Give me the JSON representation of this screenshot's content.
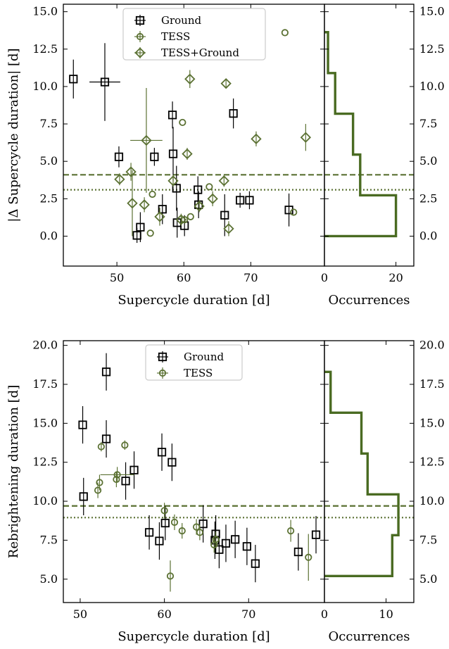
{
  "colors": {
    "ground": "#000000",
    "tess": "#5b7133",
    "tess_ground": "#5b7133",
    "hist": "#4a6b22"
  },
  "chart_data": [
    {
      "type": "scatter",
      "panel": "top",
      "xlabel": "Supercycle duration [d]",
      "ylabel": "|Δ Supercycle duration| [d]",
      "xlim": [
        42,
        81
      ],
      "ylim": [
        -2,
        15.5
      ],
      "xticks": [
        50,
        60,
        70
      ],
      "yticks": [
        0.0,
        2.5,
        5.0,
        7.5,
        10.0,
        12.5,
        15.0
      ],
      "ytick_labels": [
        "0.0",
        "2.5",
        "5.0",
        "7.5",
        "10.0",
        "12.5",
        "15.0"
      ],
      "hlines": [
        {
          "y": 4.1,
          "style": "dashed"
        },
        {
          "y": 3.1,
          "style": "dotted"
        }
      ],
      "legend": [
        "Ground",
        "TESS",
        "TESS+Ground"
      ],
      "series": [
        {
          "name": "Ground",
          "marker": "square",
          "points": [
            {
              "x": 43.5,
              "y": 10.5,
              "xerr": 0,
              "yerr": 1.3
            },
            {
              "x": 48.2,
              "y": 10.3,
              "xerr": 2.3,
              "yerr": 2.6
            },
            {
              "x": 50.3,
              "y": 5.3,
              "xerr": 0,
              "yerr": 0.7
            },
            {
              "x": 53.0,
              "y": 0.05,
              "xerr": 0,
              "yerr": 0.5
            },
            {
              "x": 53.5,
              "y": 0.6,
              "xerr": 0,
              "yerr": 1.0
            },
            {
              "x": 55.6,
              "y": 5.3,
              "xerr": 0,
              "yerr": 0.6
            },
            {
              "x": 56.8,
              "y": 1.8,
              "xerr": 0,
              "yerr": 1.0
            },
            {
              "x": 58.3,
              "y": 8.1,
              "xerr": 0,
              "yerr": 0.9
            },
            {
              "x": 58.4,
              "y": 5.5,
              "xerr": 0,
              "yerr": 1.8
            },
            {
              "x": 58.9,
              "y": 3.2,
              "xerr": 0,
              "yerr": 1.5
            },
            {
              "x": 59.0,
              "y": 0.9,
              "xerr": 0,
              "yerr": 1.0
            },
            {
              "x": 60.1,
              "y": 0.7,
              "xerr": 0,
              "yerr": 0.7
            },
            {
              "x": 62.1,
              "y": 3.1,
              "xerr": 0,
              "yerr": 0.9
            },
            {
              "x": 62.2,
              "y": 2.1,
              "xerr": 0,
              "yerr": 0.9
            },
            {
              "x": 66.1,
              "y": 1.4,
              "xerr": 0,
              "yerr": 1.4
            },
            {
              "x": 67.4,
              "y": 8.2,
              "xerr": 0,
              "yerr": 1.0
            },
            {
              "x": 68.4,
              "y": 2.4,
              "xerr": 0,
              "yerr": 0.5
            },
            {
              "x": 69.8,
              "y": 2.4,
              "xerr": 0,
              "yerr": 0.6
            },
            {
              "x": 75.7,
              "y": 1.75,
              "xerr": 0,
              "yerr": 1.1
            }
          ]
        },
        {
          "name": "TESS",
          "marker": "circle",
          "points": [
            {
              "x": 55.0,
              "y": 0.2,
              "xerr": 0,
              "yerr": 0
            },
            {
              "x": 55.3,
              "y": 2.8,
              "xerr": 0,
              "yerr": 0
            },
            {
              "x": 59.8,
              "y": 7.6,
              "xerr": 0,
              "yerr": 0
            },
            {
              "x": 60.1,
              "y": 1.1,
              "xerr": 0,
              "yerr": 0
            },
            {
              "x": 61.0,
              "y": 1.3,
              "xerr": 0,
              "yerr": 0
            },
            {
              "x": 63.8,
              "y": 3.3,
              "xerr": 0,
              "yerr": 0
            },
            {
              "x": 75.1,
              "y": 13.6,
              "xerr": 0,
              "yerr": 0
            },
            {
              "x": 76.4,
              "y": 1.6,
              "xerr": 0,
              "yerr": 0
            }
          ]
        },
        {
          "name": "TESS+Ground",
          "marker": "diamond",
          "points": [
            {
              "x": 50.4,
              "y": 3.8,
              "xerr": 0,
              "yerr": 0.4
            },
            {
              "x": 52.1,
              "y": 4.3,
              "xerr": 0,
              "yerr": 0.6
            },
            {
              "x": 52.3,
              "y": 2.2,
              "xerr": 0,
              "yerr": 2.2
            },
            {
              "x": 54.1,
              "y": 2.1,
              "xerr": 0,
              "yerr": 0.5
            },
            {
              "x": 54.4,
              "y": 6.4,
              "xerr": 2.4,
              "yerr": 3.5
            },
            {
              "x": 56.4,
              "y": 1.3,
              "xerr": 0,
              "yerr": 0.6
            },
            {
              "x": 58.4,
              "y": 3.7,
              "xerr": 0,
              "yerr": 0.4
            },
            {
              "x": 59.6,
              "y": 1.1,
              "xerr": 0,
              "yerr": 0.4
            },
            {
              "x": 60.5,
              "y": 5.5,
              "xerr": 0,
              "yerr": 0.4
            },
            {
              "x": 60.9,
              "y": 10.5,
              "xerr": 0,
              "yerr": 0.6
            },
            {
              "x": 62.3,
              "y": 2.0,
              "xerr": 0,
              "yerr": 0.4
            },
            {
              "x": 64.3,
              "y": 2.5,
              "xerr": 0,
              "yerr": 0.5
            },
            {
              "x": 66.0,
              "y": 3.7,
              "xerr": 0,
              "yerr": 0.4
            },
            {
              "x": 66.3,
              "y": 10.2,
              "xerr": 0,
              "yerr": 0.3
            },
            {
              "x": 66.7,
              "y": 0.5,
              "xerr": 0,
              "yerr": 0.5
            },
            {
              "x": 70.8,
              "y": 6.5,
              "xerr": 0,
              "yerr": 0.5
            },
            {
              "x": 78.2,
              "y": 6.6,
              "xerr": 0,
              "yerr": 0.9
            }
          ]
        }
      ]
    },
    {
      "type": "bar",
      "panel": "top-histogram",
      "xlabel": "Occurrences",
      "xlim": [
        0,
        25
      ],
      "xticks": [
        0,
        20
      ],
      "ylim": [
        -2,
        15.5
      ],
      "yticks": [
        0.0,
        2.5,
        5.0,
        7.5,
        10.0,
        12.5,
        15.0
      ],
      "ytick_labels": [
        "0.0",
        "2.5",
        "5.0",
        "7.5",
        "10.0",
        "12.5",
        "15.0"
      ],
      "hlines": [
        {
          "y": 4.1,
          "style": "dashed"
        },
        {
          "y": 3.1,
          "style": "dotted"
        }
      ],
      "bins": [
        0.0,
        2.73,
        5.45,
        8.18,
        10.9,
        13.63
      ],
      "counts": [
        20,
        10,
        8,
        3,
        1
      ]
    },
    {
      "type": "scatter",
      "panel": "bottom",
      "xlabel": "Supercycle duration [d]",
      "ylabel": "Rebrightening duration [d]",
      "xlim": [
        48,
        79
      ],
      "ylim": [
        3.5,
        20.3
      ],
      "xticks": [
        50,
        60,
        70
      ],
      "yticks": [
        5.0,
        7.5,
        10.0,
        12.5,
        15.0,
        17.5,
        20.0
      ],
      "ytick_labels": [
        "5.0",
        "7.5",
        "10.0",
        "12.5",
        "15.0",
        "17.5",
        "20.0"
      ],
      "hlines": [
        {
          "y": 9.7,
          "style": "dashed"
        },
        {
          "y": 8.95,
          "style": "dotted"
        }
      ],
      "legend": [
        "Ground",
        "TESS"
      ],
      "series": [
        {
          "name": "Ground",
          "marker": "square",
          "points": [
            {
              "x": 50.3,
              "y": 14.9,
              "xerr": 0,
              "yerr": 1.2
            },
            {
              "x": 50.4,
              "y": 10.3,
              "xerr": 0,
              "yerr": 1.2
            },
            {
              "x": 53.1,
              "y": 18.3,
              "xerr": 0,
              "yerr": 1.2
            },
            {
              "x": 53.1,
              "y": 14.0,
              "xerr": 0,
              "yerr": 1.2
            },
            {
              "x": 55.4,
              "y": 11.3,
              "xerr": 0,
              "yerr": 1.2
            },
            {
              "x": 56.4,
              "y": 12.0,
              "xerr": 0,
              "yerr": 1.2
            },
            {
              "x": 58.2,
              "y": 8.0,
              "xerr": 0,
              "yerr": 1.1
            },
            {
              "x": 59.4,
              "y": 7.45,
              "xerr": 0,
              "yerr": 1.2
            },
            {
              "x": 59.7,
              "y": 13.15,
              "xerr": 0,
              "yerr": 1.2
            },
            {
              "x": 60.1,
              "y": 8.6,
              "xerr": 0,
              "yerr": 1.1
            },
            {
              "x": 60.9,
              "y": 12.5,
              "xerr": 0,
              "yerr": 1.2
            },
            {
              "x": 64.6,
              "y": 8.55,
              "xerr": 0,
              "yerr": 1.2
            },
            {
              "x": 66.1,
              "y": 7.9,
              "xerr": 0,
              "yerr": 1.2
            },
            {
              "x": 66.0,
              "y": 7.5,
              "xerr": 0,
              "yerr": 1.2
            },
            {
              "x": 66.5,
              "y": 6.9,
              "xerr": 0,
              "yerr": 1.2
            },
            {
              "x": 67.3,
              "y": 7.3,
              "xerr": 0,
              "yerr": 1.2
            },
            {
              "x": 68.4,
              "y": 7.55,
              "xerr": 0,
              "yerr": 1.2
            },
            {
              "x": 69.8,
              "y": 7.1,
              "xerr": 0,
              "yerr": 1.2
            },
            {
              "x": 70.8,
              "y": 6.0,
              "xerr": 0,
              "yerr": 1.2
            },
            {
              "x": 75.9,
              "y": 6.75,
              "xerr": 0,
              "yerr": 1.2
            },
            {
              "x": 78.0,
              "y": 7.85,
              "xerr": 0,
              "yerr": 1.2
            }
          ]
        },
        {
          "name": "TESS",
          "marker": "circle",
          "points": [
            {
              "x": 52.1,
              "y": 10.7,
              "xerr": 0,
              "yerr": 0.5
            },
            {
              "x": 52.3,
              "y": 11.2,
              "xerr": 0,
              "yerr": 0.5
            },
            {
              "x": 52.5,
              "y": 13.5,
              "xerr": 0,
              "yerr": 0.3
            },
            {
              "x": 54.3,
              "y": 11.4,
              "xerr": 0,
              "yerr": 0.5
            },
            {
              "x": 54.4,
              "y": 11.7,
              "xerr": 2.0,
              "yerr": 0.5
            },
            {
              "x": 55.3,
              "y": 13.6,
              "xerr": 0,
              "yerr": 0.3
            },
            {
              "x": 60.0,
              "y": 9.4,
              "xerr": 0,
              "yerr": 0.5
            },
            {
              "x": 60.7,
              "y": 5.2,
              "xerr": 0,
              "yerr": 1.0
            },
            {
              "x": 61.2,
              "y": 8.65,
              "xerr": 0,
              "yerr": 0.5
            },
            {
              "x": 62.1,
              "y": 8.1,
              "xerr": 0,
              "yerr": 0.5
            },
            {
              "x": 63.8,
              "y": 8.35,
              "xerr": 0,
              "yerr": 0.5
            },
            {
              "x": 64.2,
              "y": 8.0,
              "xerr": 0,
              "yerr": 0.5
            },
            {
              "x": 65.9,
              "y": 7.2,
              "xerr": 0,
              "yerr": 0.5
            },
            {
              "x": 66.1,
              "y": 7.55,
              "xerr": 0,
              "yerr": 0.5
            },
            {
              "x": 75.0,
              "y": 8.1,
              "xerr": 0,
              "yerr": 0.7
            },
            {
              "x": 77.1,
              "y": 6.4,
              "xerr": 0,
              "yerr": 1.5
            }
          ]
        }
      ]
    },
    {
      "type": "bar",
      "panel": "bottom-histogram",
      "xlabel": "Occurrences",
      "xlim": [
        0,
        14.5
      ],
      "xticks": [
        0,
        10
      ],
      "ylim": [
        3.5,
        20.3
      ],
      "yticks": [
        5.0,
        7.5,
        10.0,
        12.5,
        15.0,
        17.5,
        20.0
      ],
      "ytick_labels": [
        "5.0",
        "7.5",
        "10.0",
        "12.5",
        "15.0",
        "17.5",
        "20.0"
      ],
      "hlines": [
        {
          "y": 9.7,
          "style": "dashed"
        },
        {
          "y": 8.95,
          "style": "dotted"
        }
      ],
      "bins": [
        5.2,
        7.82,
        10.44,
        13.06,
        15.68,
        18.3
      ],
      "counts": [
        11,
        12,
        7,
        6,
        1
      ]
    }
  ]
}
